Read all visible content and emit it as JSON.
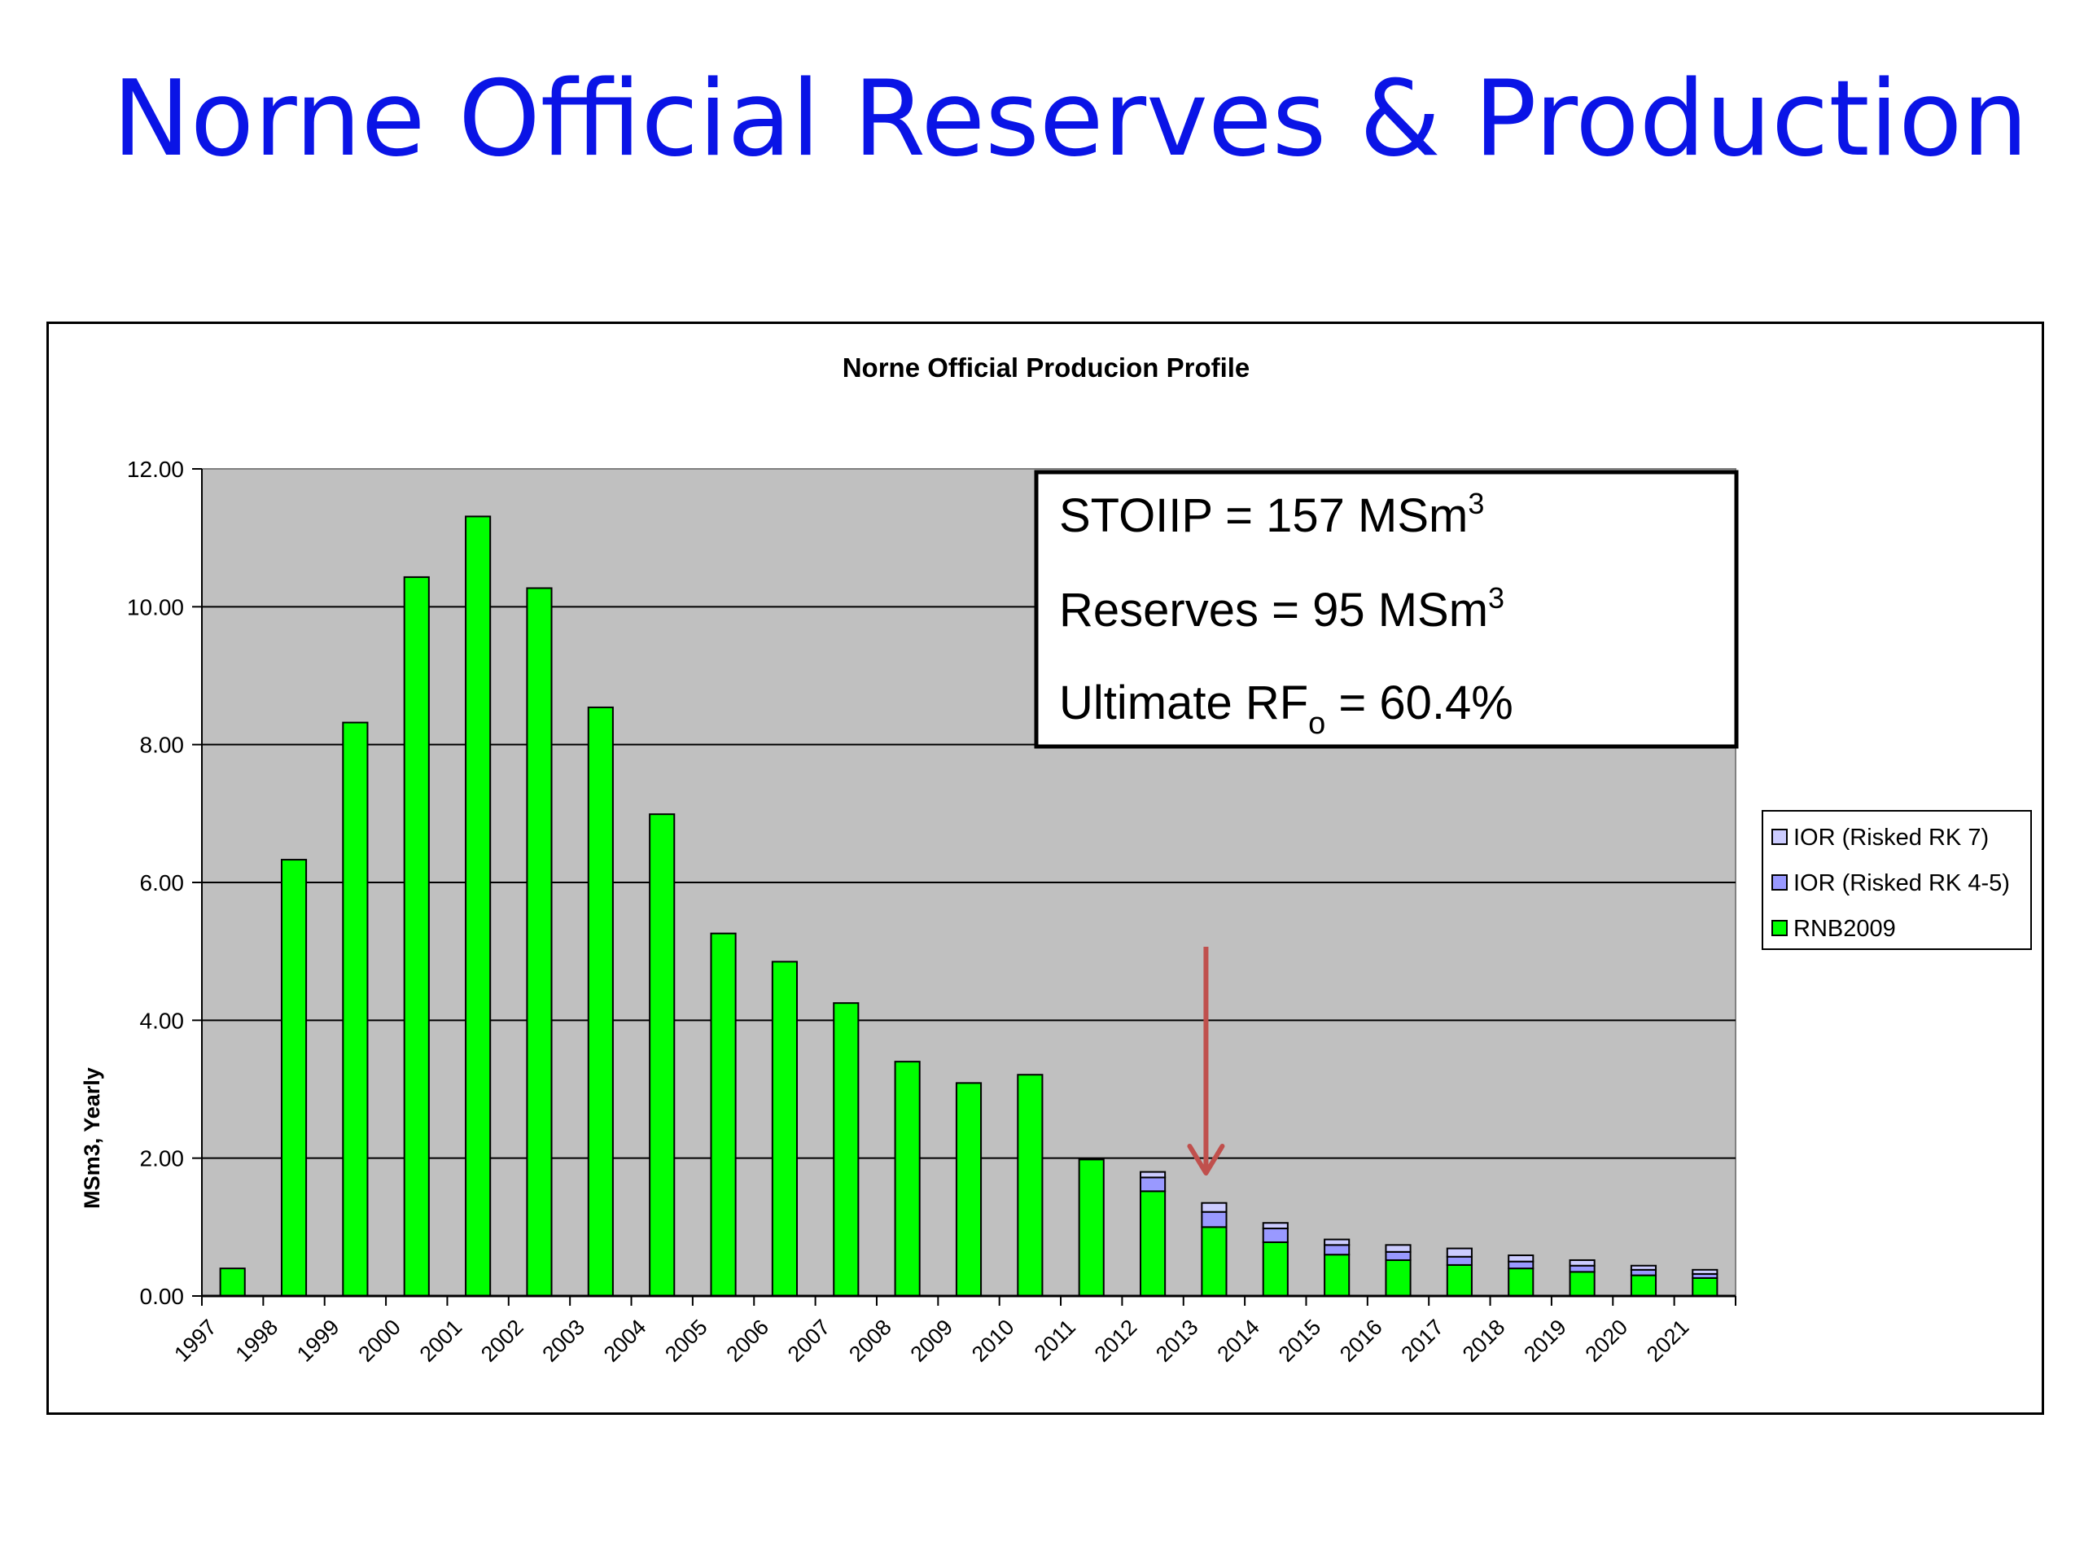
{
  "slide": {
    "title": "Norne Official Reserves & Production"
  },
  "info_box": {
    "stoiip": {
      "label": "STOIIP = 157 MSm",
      "sup": "3"
    },
    "reserves": {
      "label": "Reserves = 95 MSm",
      "sup": "3"
    },
    "rf": {
      "prefix": "Ultimate RF",
      "sub": "o",
      "suffix": " = 60.4%"
    }
  },
  "annotation": {
    "arrow_year": "2013",
    "arrow_color": "#c0504d"
  },
  "chart_data": {
    "type": "bar",
    "stacked": true,
    "title": "Norne Official Producion Profile",
    "ylabel": "MSm3, Yearly",
    "xlabel": "",
    "ylim": [
      0,
      12
    ],
    "yticks": [
      "0.00",
      "2.00",
      "4.00",
      "6.00",
      "8.00",
      "10.00",
      "12.00"
    ],
    "grid": true,
    "legend_position": "right",
    "plot_background": "#c0c0c0",
    "categories": [
      "1997",
      "1998",
      "1999",
      "2000",
      "2001",
      "2002",
      "2003",
      "2004",
      "2005",
      "2006",
      "2007",
      "2008",
      "2009",
      "2010",
      "2011",
      "2012",
      "2013",
      "2014",
      "2015",
      "2016",
      "2017",
      "2018",
      "2019",
      "2020",
      "2021"
    ],
    "series": [
      {
        "name": "RNB2009",
        "color": "#00ff00",
        "values": [
          0.4,
          6.33,
          8.32,
          10.43,
          11.31,
          10.27,
          8.54,
          6.99,
          5.26,
          4.85,
          4.25,
          3.4,
          3.09,
          3.21,
          1.98,
          1.52,
          1.0,
          0.78,
          0.6,
          0.52,
          0.45,
          0.4,
          0.35,
          0.3,
          0.26
        ]
      },
      {
        "name": "IOR (Risked RK 4-5)",
        "color": "#9999ff",
        "values": [
          0,
          0,
          0,
          0,
          0,
          0,
          0,
          0,
          0,
          0,
          0,
          0,
          0,
          0,
          0,
          0.2,
          0.22,
          0.2,
          0.14,
          0.12,
          0.12,
          0.1,
          0.09,
          0.08,
          0.06
        ]
      },
      {
        "name": "IOR (Risked RK 7)",
        "color": "#ccccff",
        "values": [
          0,
          0,
          0,
          0,
          0,
          0,
          0,
          0,
          0,
          0,
          0,
          0,
          0,
          0,
          0,
          0.08,
          0.13,
          0.08,
          0.08,
          0.1,
          0.12,
          0.09,
          0.08,
          0.06,
          0.06
        ]
      }
    ],
    "legend_order": [
      "IOR (Risked RK 7)",
      "IOR (Risked RK 4-5)",
      "RNB2009"
    ]
  }
}
